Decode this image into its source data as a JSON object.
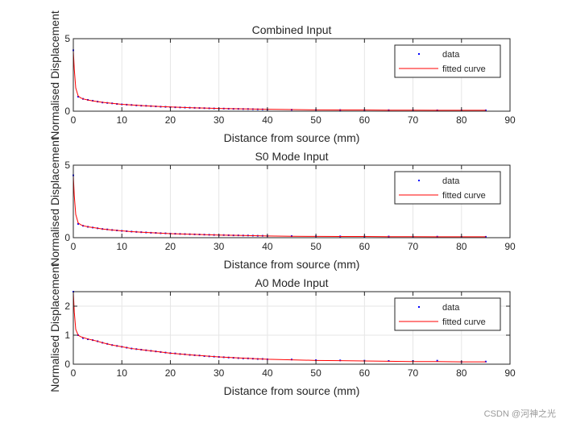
{
  "chart_data": [
    {
      "type": "scatter",
      "title": "Combined Input",
      "xlabel": "Distance from source (mm)",
      "ylabel": "Normalised Displacement",
      "xlim": [
        0,
        90
      ],
      "ylim": [
        0,
        5
      ],
      "xticks": [
        "0",
        "10",
        "20",
        "30",
        "40",
        "50",
        "60",
        "70",
        "80",
        "90"
      ],
      "yticks": [
        "0",
        "5"
      ],
      "grid": true,
      "legend": {
        "location": "top-right",
        "entries": [
          "data",
          "fitted curve"
        ]
      },
      "series": [
        {
          "name": "data",
          "style": "points",
          "x": [
            0,
            1,
            2,
            3,
            4,
            5,
            6,
            7,
            8,
            9,
            10,
            11,
            12,
            13,
            14,
            15,
            16,
            17,
            18,
            19,
            20,
            21,
            22,
            23,
            24,
            25,
            26,
            27,
            28,
            29,
            30,
            31,
            32,
            33,
            34,
            35,
            36,
            37,
            38,
            39,
            40,
            45,
            50,
            55,
            60,
            65,
            70,
            75,
            80,
            85
          ],
          "y": [
            4.2,
            1.0,
            0.85,
            0.78,
            0.72,
            0.66,
            0.6,
            0.57,
            0.54,
            0.5,
            0.47,
            0.45,
            0.43,
            0.4,
            0.38,
            0.37,
            0.35,
            0.33,
            0.31,
            0.3,
            0.28,
            0.27,
            0.26,
            0.25,
            0.24,
            0.23,
            0.22,
            0.21,
            0.2,
            0.19,
            0.18,
            0.18,
            0.17,
            0.16,
            0.16,
            0.15,
            0.15,
            0.14,
            0.13,
            0.13,
            0.12,
            0.1,
            0.09,
            0.08,
            0.08,
            0.07,
            0.07,
            0.06,
            0.06,
            0.06
          ]
        },
        {
          "name": "fitted curve",
          "style": "line",
          "x": [
            0,
            0.2,
            0.5,
            1,
            1.5,
            2,
            3,
            4,
            5,
            6,
            8,
            10,
            12,
            15,
            18,
            20,
            25,
            30,
            35,
            40,
            45,
            50,
            55,
            60,
            65,
            70,
            75,
            80,
            85
          ],
          "y": [
            4.2,
            2.9,
            1.6,
            1.05,
            0.92,
            0.85,
            0.77,
            0.71,
            0.66,
            0.61,
            0.54,
            0.47,
            0.43,
            0.37,
            0.32,
            0.29,
            0.23,
            0.19,
            0.16,
            0.13,
            0.11,
            0.09,
            0.08,
            0.08,
            0.07,
            0.07,
            0.06,
            0.06,
            0.06
          ]
        }
      ]
    },
    {
      "type": "scatter",
      "title": "S0 Mode Input",
      "xlabel": "Distance from source (mm)",
      "ylabel": "Normalised Displacement",
      "xlim": [
        0,
        90
      ],
      "ylim": [
        0,
        5
      ],
      "xticks": [
        "0",
        "10",
        "20",
        "30",
        "40",
        "50",
        "60",
        "70",
        "80",
        "90"
      ],
      "yticks": [
        "0",
        "5"
      ],
      "grid": true,
      "legend": {
        "location": "top-right",
        "entries": [
          "data",
          "fitted curve"
        ]
      },
      "series": [
        {
          "name": "data",
          "style": "points",
          "x": [
            0,
            1,
            2,
            3,
            4,
            5,
            6,
            7,
            8,
            9,
            10,
            11,
            12,
            13,
            14,
            15,
            16,
            17,
            18,
            19,
            20,
            21,
            22,
            23,
            24,
            25,
            26,
            27,
            28,
            29,
            30,
            31,
            32,
            33,
            34,
            35,
            36,
            37,
            38,
            39,
            40,
            45,
            50,
            55,
            60,
            65,
            70,
            75,
            80,
            85
          ],
          "y": [
            4.3,
            0.95,
            0.82,
            0.75,
            0.7,
            0.65,
            0.6,
            0.57,
            0.53,
            0.5,
            0.47,
            0.45,
            0.42,
            0.4,
            0.38,
            0.36,
            0.34,
            0.33,
            0.31,
            0.3,
            0.28,
            0.27,
            0.26,
            0.25,
            0.24,
            0.23,
            0.22,
            0.21,
            0.2,
            0.19,
            0.18,
            0.18,
            0.17,
            0.16,
            0.16,
            0.15,
            0.15,
            0.14,
            0.13,
            0.13,
            0.12,
            0.11,
            0.1,
            0.09,
            0.08,
            0.08,
            0.07,
            0.07,
            0.06,
            0.06
          ]
        },
        {
          "name": "fitted curve",
          "style": "line",
          "x": [
            0,
            0.2,
            0.5,
            1,
            1.5,
            2,
            3,
            4,
            5,
            6,
            8,
            10,
            12,
            15,
            18,
            20,
            25,
            30,
            35,
            40,
            45,
            50,
            55,
            60,
            65,
            70,
            75,
            80,
            85
          ],
          "y": [
            4.3,
            2.9,
            1.6,
            1.02,
            0.9,
            0.83,
            0.75,
            0.7,
            0.65,
            0.6,
            0.53,
            0.47,
            0.42,
            0.36,
            0.31,
            0.28,
            0.23,
            0.18,
            0.15,
            0.12,
            0.1,
            0.09,
            0.08,
            0.08,
            0.07,
            0.07,
            0.06,
            0.06,
            0.06
          ]
        }
      ]
    },
    {
      "type": "scatter",
      "title": "A0 Mode Input",
      "xlabel": "Distance from source (mm)",
      "ylabel": "Normalised Displacement",
      "xlim": [
        0,
        90
      ],
      "ylim": [
        0,
        2.5
      ],
      "xticks": [
        "0",
        "10",
        "20",
        "30",
        "40",
        "50",
        "60",
        "70",
        "80",
        "90"
      ],
      "yticks": [
        "0",
        "1",
        "2"
      ],
      "grid": true,
      "legend": {
        "location": "top-right",
        "entries": [
          "data",
          "fitted curve"
        ]
      },
      "series": [
        {
          "name": "data",
          "style": "points",
          "x": [
            0,
            1,
            2,
            3,
            4,
            5,
            6,
            7,
            8,
            9,
            10,
            11,
            12,
            13,
            14,
            15,
            16,
            17,
            18,
            19,
            20,
            21,
            22,
            23,
            24,
            25,
            26,
            27,
            28,
            29,
            30,
            31,
            32,
            33,
            34,
            35,
            36,
            37,
            38,
            39,
            40,
            45,
            50,
            55,
            60,
            65,
            70,
            75,
            80,
            85
          ],
          "y": [
            2.5,
            1.0,
            0.9,
            0.86,
            0.83,
            0.79,
            0.74,
            0.7,
            0.66,
            0.63,
            0.6,
            0.57,
            0.54,
            0.52,
            0.5,
            0.48,
            0.46,
            0.44,
            0.42,
            0.4,
            0.38,
            0.37,
            0.35,
            0.34,
            0.32,
            0.31,
            0.3,
            0.28,
            0.27,
            0.26,
            0.25,
            0.24,
            0.23,
            0.22,
            0.21,
            0.2,
            0.2,
            0.19,
            0.18,
            0.18,
            0.17,
            0.16,
            0.14,
            0.13,
            0.12,
            0.11,
            0.11,
            0.12,
            0.08,
            0.09
          ]
        },
        {
          "name": "fitted curve",
          "style": "line",
          "x": [
            0,
            0.2,
            0.5,
            1,
            1.5,
            2,
            3,
            4,
            5,
            6,
            8,
            10,
            12,
            15,
            18,
            20,
            25,
            30,
            35,
            40,
            45,
            50,
            55,
            60,
            65,
            70,
            75,
            80,
            85
          ],
          "y": [
            2.5,
            1.8,
            1.2,
            1.0,
            0.95,
            0.92,
            0.87,
            0.83,
            0.79,
            0.74,
            0.66,
            0.6,
            0.54,
            0.48,
            0.42,
            0.38,
            0.31,
            0.25,
            0.21,
            0.17,
            0.15,
            0.13,
            0.12,
            0.11,
            0.1,
            0.09,
            0.09,
            0.08,
            0.08
          ]
        }
      ]
    }
  ],
  "colors": {
    "data_marker": "#0000ff",
    "fitted_curve": "#ff0000",
    "grid": "#e6e6e6",
    "axes": "#262626"
  },
  "watermark": "CSDN @河神之光"
}
